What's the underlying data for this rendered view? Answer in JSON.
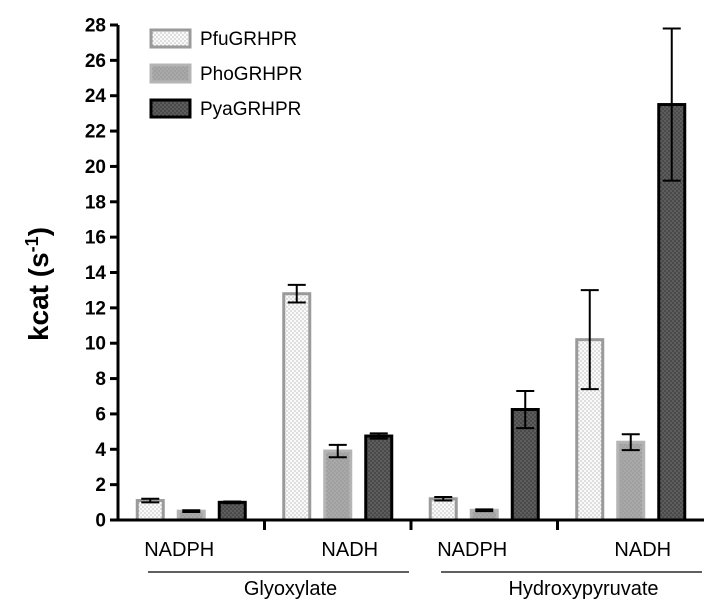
{
  "chart_data": {
    "type": "bar",
    "ylabel": "kcat (s-1)",
    "ylabel_main": "kcat (s",
    "ylabel_sup": "-1",
    "ylabel_close": ")",
    "ylim": [
      0,
      28
    ],
    "yticks": [
      0,
      2,
      4,
      6,
      8,
      10,
      12,
      14,
      16,
      18,
      20,
      22,
      24,
      26,
      28
    ],
    "grid": false,
    "legend_position": "top-left",
    "categories": [
      "NADPH",
      "NADH",
      "NADPH",
      "NADH"
    ],
    "groups": [
      {
        "label": "Glyoxylate",
        "categories": [
          0,
          1
        ]
      },
      {
        "label": "Hydroxypyruvate",
        "categories": [
          2,
          3
        ]
      }
    ],
    "series": [
      {
        "name": "PfuGRHPR",
        "fill": "#fafafa",
        "stroke": "#9a9a9a",
        "pattern": "light-dots",
        "values": [
          1.1,
          12.8,
          1.2,
          10.2
        ],
        "errors": [
          0.1,
          0.5,
          0.1,
          2.8
        ]
      },
      {
        "name": "PhoGRHPR",
        "fill": "#a9a9a9",
        "stroke": "#b4b4b4",
        "pattern": "mid-dots",
        "values": [
          0.5,
          3.9,
          0.55,
          4.4
        ],
        "errors": [
          0.05,
          0.35,
          0.05,
          0.45
        ]
      },
      {
        "name": "PyaGRHPR",
        "fill": "#4a4a4a",
        "stroke": "#000000",
        "pattern": "dark-dots",
        "values": [
          1.0,
          4.75,
          6.25,
          23.5
        ],
        "errors": [
          0.05,
          0.15,
          1.05,
          4.3
        ]
      }
    ]
  }
}
